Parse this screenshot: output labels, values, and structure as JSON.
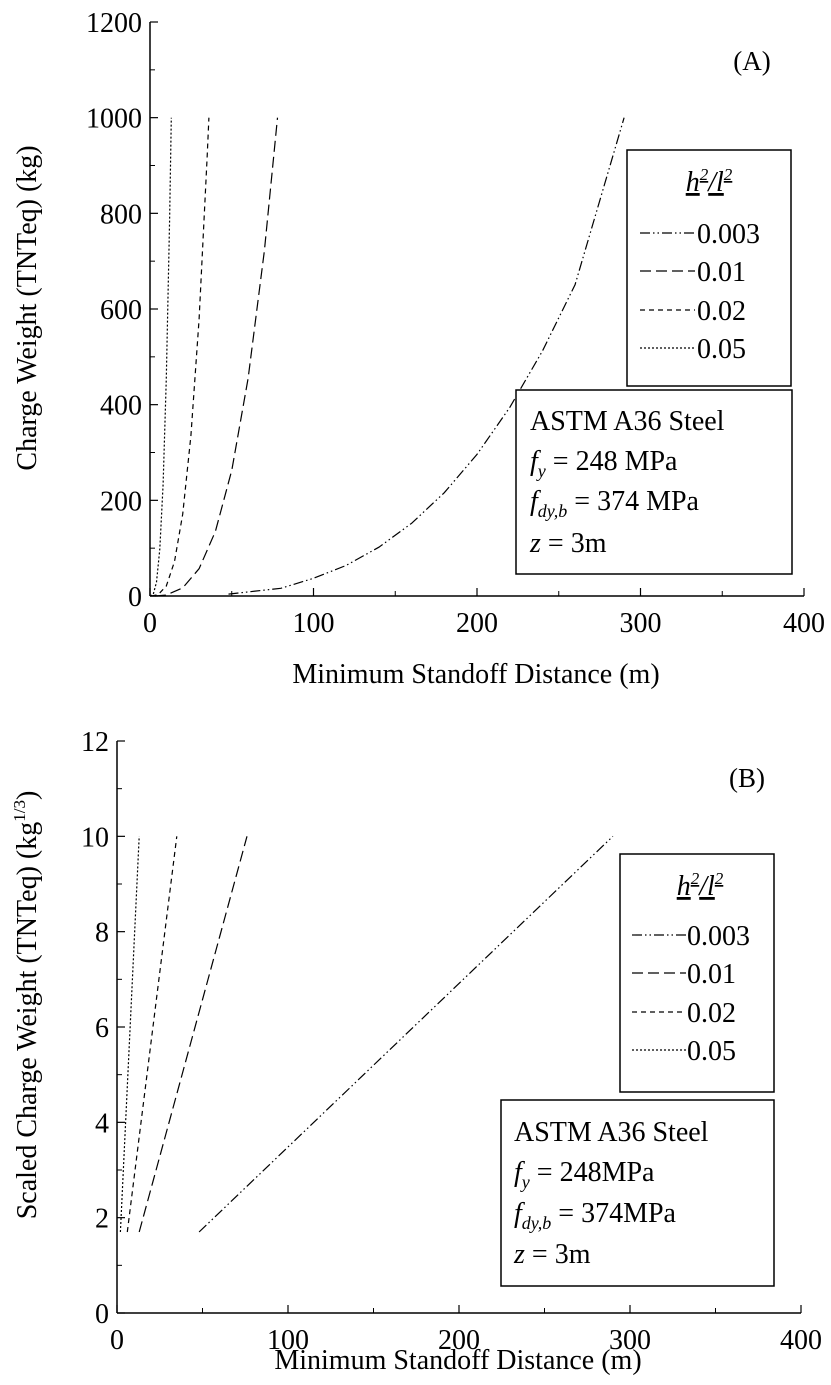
{
  "chart_data": [
    {
      "type": "line",
      "panel_label": "(A)",
      "xlabel": "Minimum Standoff Distance (m)",
      "ylabel": "Charge Weight (TNTeq) (kg)",
      "xlim": [
        0,
        400
      ],
      "ylim": [
        0,
        1200
      ],
      "xticks": [
        0,
        100,
        200,
        300,
        400
      ],
      "yticks": [
        0,
        200,
        400,
        600,
        800,
        1000,
        1200
      ],
      "grid": false,
      "legend": {
        "title_base": "h",
        "title_sup1": "2",
        "title_slash": "/",
        "title_base2": "l",
        "title_sup2": "2",
        "placement": "top-right"
      },
      "annotation": {
        "placement": "right",
        "material": "ASTM A36 Steel",
        "fy_sym": "f",
        "fy_sub": "y",
        "fy_val": " = 248 MPa",
        "fd_sym": "f",
        "fd_sub": "dy,b",
        "fd_val": " = 374 MPa",
        "z_sym": "z",
        "z_val": " = 3m"
      },
      "series": [
        {
          "name": "0.003",
          "dash": "10,3,1.5,3,1.5,3",
          "x": [
            48,
            80,
            100,
            120,
            140,
            160,
            180,
            200,
            220,
            240,
            260,
            290
          ],
          "y": [
            4,
            16,
            37,
            64,
            102,
            152,
            216,
            296,
            394,
            512,
            651,
            1000
          ]
        },
        {
          "name": "0.01",
          "dash": "11,5",
          "x": [
            3,
            10,
            20,
            30,
            40,
            50,
            60,
            70,
            78
          ],
          "y": [
            0,
            2,
            17,
            57,
            135,
            263,
            455,
            722,
            1000
          ]
        },
        {
          "name": "0.02",
          "dash": "5,4",
          "x": [
            1,
            5,
            10,
            15,
            20,
            25,
            30,
            35,
            36
          ],
          "y": [
            0,
            3,
            21,
            72,
            171,
            335,
            579,
            920,
            1000
          ]
        },
        {
          "name": "0.05",
          "dash": "2,2",
          "x": [
            0,
            2,
            4,
            6,
            8,
            10,
            12,
            13
          ],
          "y": [
            0,
            4,
            29,
            98,
            233,
            455,
            786,
            1000
          ]
        }
      ]
    },
    {
      "type": "line",
      "panel_label": "(B)",
      "xlabel": "Minimum Standoff Distance (m)",
      "ylabel_main": "Scaled Charge Weight (TNTeq) (kg",
      "ylabel_sup": "1/3",
      "ylabel_end": ")",
      "xlim": [
        0,
        400
      ],
      "ylim": [
        0,
        12
      ],
      "xticks": [
        0,
        100,
        200,
        300,
        400
      ],
      "yticks": [
        0,
        2,
        4,
        6,
        8,
        10,
        12
      ],
      "grid": false,
      "legend": {
        "title_base": "h",
        "title_sup1": "2",
        "title_slash": "/",
        "title_base2": "l",
        "title_sup2": "2",
        "placement": "right"
      },
      "annotation": {
        "placement": "bottom-right",
        "material": "ASTM A36 Steel",
        "fy_sym": "f",
        "fy_sub": "y",
        "fy_val": " = 248MPa",
        "fd_sym": "f",
        "fd_sub": "dy,b",
        "fd_val": " = 374MPa",
        "z_sym": "z",
        "z_val": " = 3m"
      },
      "series": [
        {
          "name": "0.003",
          "dash": "10,3,1.5,3,1.5,3",
          "x": [
            48,
            290
          ],
          "y": [
            1.7,
            10
          ]
        },
        {
          "name": "0.01",
          "dash": "11,5",
          "x": [
            13,
            76
          ],
          "y": [
            1.7,
            10
          ]
        },
        {
          "name": "0.02",
          "dash": "5,4",
          "x": [
            6,
            35
          ],
          "y": [
            1.7,
            10
          ]
        },
        {
          "name": "0.05",
          "dash": "2,2",
          "x": [
            2,
            13
          ],
          "y": [
            1.7,
            10
          ]
        }
      ]
    }
  ]
}
